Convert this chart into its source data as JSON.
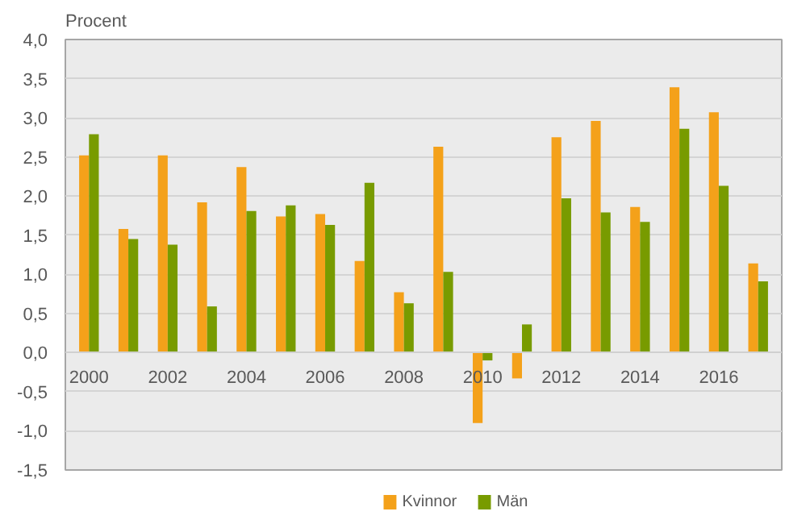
{
  "chart_data": {
    "type": "bar",
    "ylabel": "Procent",
    "categories": [
      "2000",
      null,
      "2002",
      null,
      "2004",
      null,
      "2006",
      null,
      "2008",
      null,
      "2010",
      null,
      "2012",
      null,
      "2014",
      null,
      "2016",
      null
    ],
    "series": [
      {
        "name": "Kvinnor",
        "color": "#f4a11a",
        "values": [
          2.52,
          1.58,
          2.52,
          1.92,
          2.37,
          1.74,
          1.77,
          1.17,
          0.77,
          2.63,
          -0.9,
          -0.33,
          2.75,
          2.96,
          1.86,
          3.39,
          3.07,
          1.14
        ]
      },
      {
        "name": "Män",
        "color": "#789b00",
        "values": [
          2.79,
          1.45,
          1.38,
          0.59,
          1.81,
          1.88,
          1.63,
          2.17,
          0.63,
          1.03,
          -0.1,
          0.36,
          1.97,
          1.79,
          1.67,
          2.86,
          2.13,
          0.91
        ]
      }
    ],
    "ylim": [
      -1.5,
      4.0
    ],
    "yticks": [
      {
        "value": -1.5,
        "label": "-1,5"
      },
      {
        "value": -1.0,
        "label": "-1,0"
      },
      {
        "value": -0.5,
        "label": "-0,5"
      },
      {
        "value": 0,
        "label": "0,0"
      },
      {
        "value": 0.5,
        "label": "0,5"
      },
      {
        "value": 1.0,
        "label": "1,0"
      },
      {
        "value": 1.5,
        "label": "1,5"
      },
      {
        "value": 2.0,
        "label": "2,0"
      },
      {
        "value": 2.5,
        "label": "2,5"
      },
      {
        "value": 3.0,
        "label": "3,0"
      },
      {
        "value": 3.5,
        "label": "3,5"
      },
      {
        "value": 4.0,
        "label": "4,0"
      }
    ],
    "grid": "y",
    "legend": "bottom"
  }
}
